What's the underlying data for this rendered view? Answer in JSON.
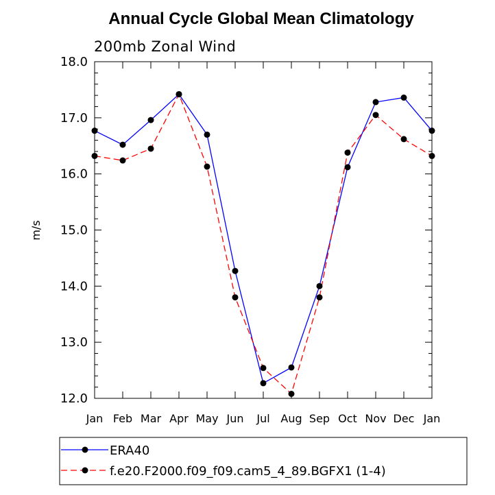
{
  "chart_data": {
    "type": "line",
    "title": "Annual Cycle Global Mean Climatology",
    "subtitle": "200mb Zonal Wind",
    "xlabel": "",
    "ylabel": "m/s",
    "ylim": [
      12.0,
      18.0
    ],
    "yticks": [
      "12.0",
      "13.0",
      "14.0",
      "15.0",
      "16.0",
      "17.0",
      "18.0"
    ],
    "categories": [
      "Jan",
      "Feb",
      "Mar",
      "Apr",
      "May",
      "Jun",
      "Jul",
      "Aug",
      "Sep",
      "Oct",
      "Nov",
      "Dec",
      "Jan"
    ],
    "grid": false,
    "legend_position": "bottom",
    "series": [
      {
        "name": "ERA40",
        "color": "#0000ff",
        "line_style": "solid",
        "marker": "filled-circle",
        "values": [
          16.77,
          16.52,
          16.96,
          17.42,
          16.7,
          14.27,
          12.27,
          12.55,
          14.0,
          16.12,
          17.28,
          17.36,
          16.77
        ]
      },
      {
        "name": "f.e20.F2000.f09_f09.cam5_4_89.BGFX1 (1-4)",
        "color": "#ff0000",
        "line_style": "dashed",
        "marker": "filled-circle",
        "values": [
          16.32,
          16.24,
          16.45,
          17.42,
          16.13,
          13.8,
          12.54,
          12.08,
          13.8,
          16.38,
          17.05,
          16.62,
          16.32
        ]
      }
    ]
  }
}
